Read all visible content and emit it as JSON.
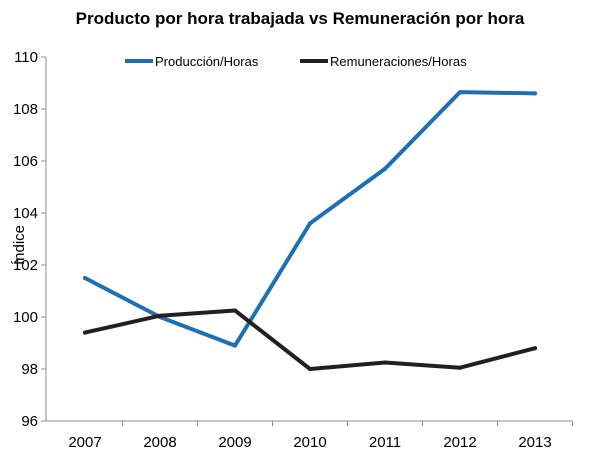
{
  "chart_data": {
    "type": "line",
    "title": "Producto por hora trabajada vs Remuneración por hora",
    "xlabel": "",
    "ylabel": "Índice",
    "x": [
      "2007",
      "2008",
      "2009",
      "2010",
      "2011",
      "2012",
      "2013"
    ],
    "ylim": [
      96,
      110
    ],
    "yticks": [
      96,
      98,
      100,
      102,
      104,
      106,
      108,
      110
    ],
    "grid": false,
    "legend": "top",
    "series": [
      {
        "name": "Producción/Horas",
        "color": "#1F6FB5",
        "values": [
          101.5,
          100.0,
          98.9,
          103.6,
          105.7,
          108.65,
          108.6
        ]
      },
      {
        "name": "Remuneraciones/Horas",
        "color": "#231F20",
        "values": [
          99.4,
          100.05,
          100.25,
          98.0,
          98.25,
          98.05,
          98.8
        ]
      }
    ]
  }
}
